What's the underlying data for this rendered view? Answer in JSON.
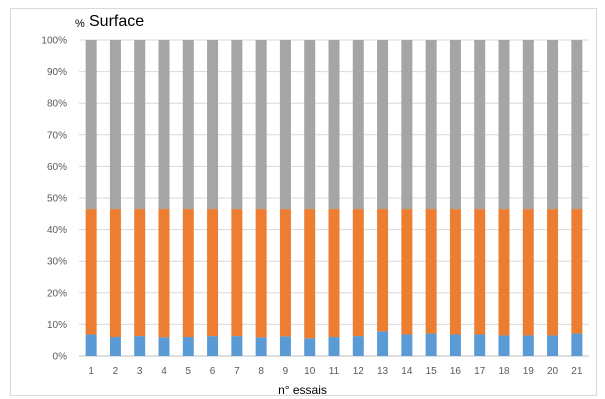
{
  "chart_data": {
    "type": "bar",
    "stacked": "percent",
    "title_prefix": "%",
    "title": "Surface",
    "xlabel": "n° essais",
    "ylabel": "",
    "ylim": [
      0,
      100
    ],
    "yticks": [
      "0%",
      "10%",
      "20%",
      "30%",
      "40%",
      "50%",
      "60%",
      "70%",
      "80%",
      "90%",
      "100%"
    ],
    "grid": true,
    "legend": "none",
    "categories": [
      "1",
      "2",
      "3",
      "4",
      "5",
      "6",
      "7",
      "8",
      "9",
      "10",
      "11",
      "12",
      "13",
      "14",
      "15",
      "16",
      "17",
      "18",
      "19",
      "20",
      "21"
    ],
    "series": [
      {
        "color": "#5b9bd5",
        "values": [
          6.8,
          6.0,
          6.3,
          5.9,
          6.0,
          6.3,
          6.3,
          5.9,
          6.2,
          5.6,
          6.0,
          6.3,
          7.8,
          6.8,
          7.1,
          6.8,
          6.8,
          6.5,
          6.5,
          6.5,
          7.1
        ]
      },
      {
        "color": "#ed7d31",
        "values": [
          39.7,
          40.5,
          40.2,
          40.6,
          40.5,
          40.2,
          40.2,
          40.6,
          40.3,
          40.9,
          40.5,
          40.2,
          38.7,
          39.7,
          39.4,
          39.7,
          39.7,
          40.0,
          40.0,
          40.0,
          39.4
        ]
      },
      {
        "color": "#a5a5a5",
        "values": [
          53.5,
          53.5,
          53.5,
          53.5,
          53.5,
          53.5,
          53.5,
          53.5,
          53.5,
          53.5,
          53.5,
          53.5,
          53.5,
          53.5,
          53.5,
          53.5,
          53.5,
          53.5,
          53.5,
          53.5,
          53.5
        ]
      }
    ]
  }
}
